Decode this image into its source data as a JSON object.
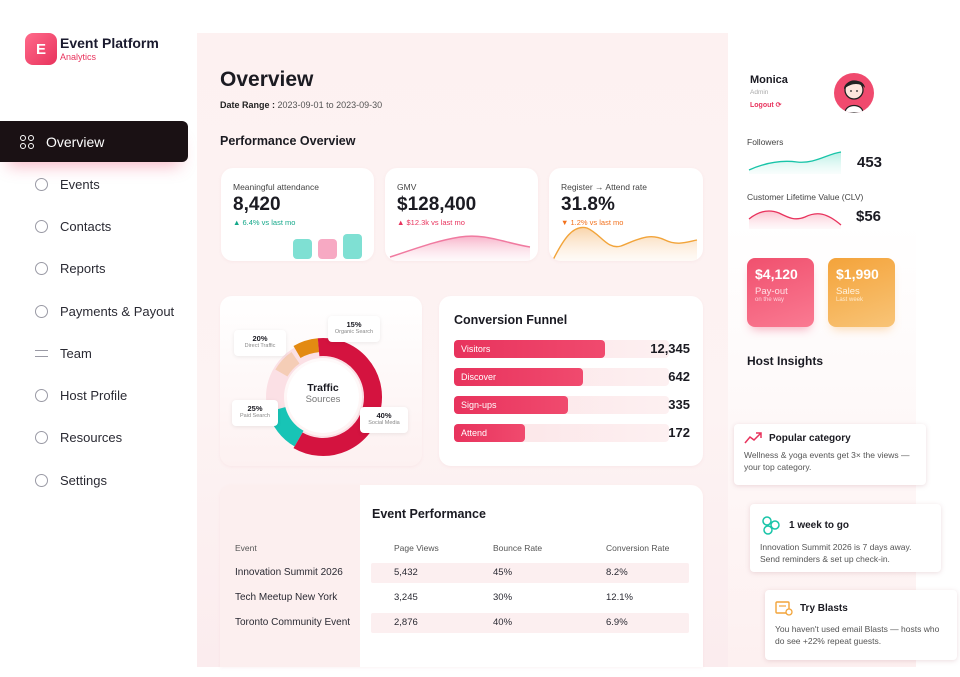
{
  "brand": {
    "logo_letter": "E",
    "name": "Event Platform",
    "sub": "Analytics"
  },
  "nav": [
    {
      "label": "Overview",
      "icon": "grid-icon",
      "active": true
    },
    {
      "label": "Events",
      "icon": "calendar-icon"
    },
    {
      "label": "Contacts",
      "icon": "contacts-icon"
    },
    {
      "label": "Reports",
      "icon": "users-icon"
    },
    {
      "label": "Payments & Payout",
      "icon": "payment-icon"
    },
    {
      "label": "Team",
      "icon": "arrows-icon"
    },
    {
      "label": "Host Profile",
      "icon": "profile-icon"
    },
    {
      "label": "Resources",
      "icon": "resources-icon"
    },
    {
      "label": "Settings",
      "icon": "settings-icon"
    }
  ],
  "header": {
    "title": "Overview",
    "date_label": "Date Range :",
    "date_value": "2023-09-01 to 2023-09-30"
  },
  "performance": {
    "title": "Performance Overview",
    "kpis": [
      {
        "label": "Meaningful attendance",
        "value": "8,420",
        "delta": "▲ 6.4% vs last mo",
        "trend": "up"
      },
      {
        "label": "GMV",
        "value": "$128,400",
        "delta": "▲ $12.3k vs last mo",
        "trend": "up-pink"
      },
      {
        "label": "Register → Attend rate",
        "value": "31.8%",
        "delta": "▼ 1.2% vs last mo",
        "trend": "down"
      }
    ]
  },
  "traffic": {
    "center_title": "Traffic",
    "center_sub": "Sources",
    "segments": [
      {
        "pct": "20%",
        "label": "Direct Traffic",
        "color": "#f5cdb6"
      },
      {
        "pct": "15%",
        "label": "Organic Search",
        "color": "#e38a12"
      },
      {
        "pct": "25%",
        "label": "Paid Search",
        "color": "#18c4b6"
      },
      {
        "pct": "40%",
        "label": "Social Media",
        "color": "#d4133f"
      }
    ]
  },
  "funnel": {
    "title": "Conversion Funnel",
    "rows": [
      {
        "label": "Visitors",
        "value": "12,345",
        "fraction": 0.7
      },
      {
        "label": "Discover",
        "value": "642",
        "fraction": 0.6
      },
      {
        "label": "Sign-ups",
        "value": "335",
        "fraction": 0.53
      },
      {
        "label": "Attend",
        "value": "172",
        "fraction": 0.33
      }
    ]
  },
  "event_perf": {
    "title": "Event Performance",
    "headers": [
      "Event",
      "Page Views",
      "Bounce Rate",
      "Conversion Rate"
    ],
    "rows": [
      [
        "Innovation Summit 2026",
        "5,432",
        "45%",
        "8.2%"
      ],
      [
        "Tech Meetup New York",
        "3,245",
        "30%",
        "12.1%"
      ],
      [
        "Toronto Community Event",
        "2,876",
        "40%",
        "6.9%"
      ]
    ]
  },
  "user": {
    "name": "Monica",
    "role": "Admin",
    "logout": "Logout ⟳"
  },
  "stats": [
    {
      "label": "Followers",
      "value": "453",
      "color": "#18c4a8"
    },
    {
      "label": "Customer Lifetime Value (CLV)",
      "value": "$56",
      "color": "#e8335d"
    }
  ],
  "money": [
    {
      "value": "$4,120",
      "label": "Pay-out",
      "sub": "on the way",
      "color": "#e8335d"
    },
    {
      "value": "$1,990",
      "label": "Sales",
      "sub": "Last week",
      "color": "#f2a43a"
    }
  ],
  "insights_title": "Host Insights",
  "insights": [
    {
      "title": "Popular category",
      "body": "Wellness & yoga events get 3× the views — your top category.",
      "icon": "trend-up-icon"
    },
    {
      "title": "1 week to go",
      "body": "Innovation Summit 2026 is 7 days away. Send reminders & set up check-in.",
      "icon": "network-icon"
    },
    {
      "title": "Try Blasts",
      "body": "You haven't used email Blasts — hosts who do see +22% repeat guests.",
      "icon": "email-blast-icon"
    }
  ]
}
